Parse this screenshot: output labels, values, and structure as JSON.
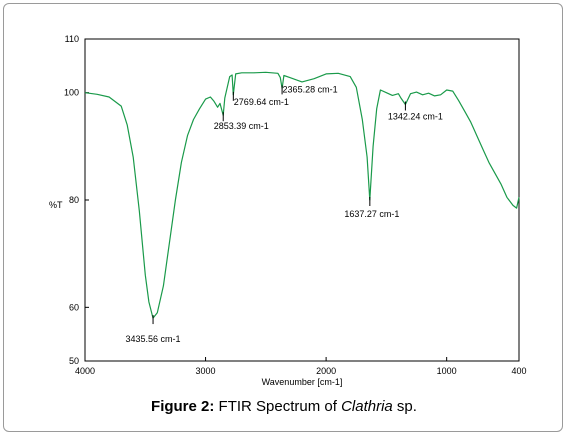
{
  "chart_data": {
    "type": "line",
    "ylabel": "%T",
    "xlabel": "Wavenumber [cm-1]",
    "xlim": [
      4000,
      400
    ],
    "ylim": [
      50,
      110
    ],
    "x_ticks": [
      "4000",
      "3000",
      "2000",
      "1000",
      "400"
    ],
    "y_ticks": [
      "110",
      "100",
      "80",
      "60",
      "50"
    ],
    "line_color": "#1a9a4a",
    "series": [
      {
        "x": [
          4000,
          3900,
          3800,
          3700,
          3650,
          3600,
          3550,
          3500,
          3470,
          3435.56,
          3400,
          3350,
          3300,
          3250,
          3200,
          3150,
          3100,
          3050,
          3000,
          2960,
          2930,
          2900,
          2880,
          2853.39,
          2840,
          2800,
          2780,
          2769.64,
          2750,
          2700,
          2600,
          2500,
          2400,
          2380,
          2365.28,
          2350,
          2300,
          2200,
          2100,
          2000,
          1900,
          1800,
          1750,
          1700,
          1660,
          1637.27,
          1610,
          1580,
          1550,
          1500,
          1450,
          1400,
          1380,
          1342.24,
          1300,
          1250,
          1200,
          1150,
          1100,
          1050,
          1000,
          950,
          900,
          850,
          800,
          750,
          700,
          650,
          600,
          550,
          500,
          450,
          420,
          400
        ],
        "y": [
          100.0,
          99.7,
          99.2,
          97.5,
          94.0,
          88.0,
          78.0,
          66.0,
          61.0,
          58.0,
          59.0,
          64.0,
          72.0,
          80.0,
          87.0,
          92.0,
          95.0,
          97.0,
          98.8,
          99.2,
          98.4,
          97.3,
          98.0,
          95.8,
          99.0,
          103.0,
          103.3,
          99.6,
          103.5,
          103.7,
          103.7,
          103.8,
          103.6,
          102.8,
          100.8,
          103.2,
          102.8,
          102.0,
          102.6,
          103.5,
          103.6,
          103.0,
          101.0,
          95.0,
          88.0,
          80.0,
          90.0,
          97.0,
          100.5,
          100.0,
          99.5,
          99.8,
          99.0,
          97.8,
          99.8,
          100.1,
          99.6,
          99.9,
          99.4,
          99.6,
          100.5,
          100.3,
          98.5,
          96.5,
          94.5,
          92.0,
          89.5,
          87.0,
          85.0,
          83.0,
          80.5,
          79.0,
          78.5,
          80.5
        ]
      }
    ],
    "annotations": [
      {
        "label": "3435.56 cm-1",
        "x": 3435.56,
        "y": 58.0
      },
      {
        "label": "2853.39 cm-1",
        "x": 2853.39,
        "y": 95.8
      },
      {
        "label": "2769.64 cm-1",
        "x": 2769.64,
        "y": 99.6
      },
      {
        "label": "2365.28 cm-1",
        "x": 2365.28,
        "y": 100.8
      },
      {
        "label": "1637.27 cm-1",
        "x": 1637.27,
        "y": 80.0
      },
      {
        "label": "1342.24 cm-1",
        "x": 1342.24,
        "y": 97.8
      }
    ]
  },
  "caption": {
    "prefix": "Figure 2:",
    "text": " FTIR Spectrum of ",
    "italic": "Clathria",
    "suffix": " sp."
  }
}
